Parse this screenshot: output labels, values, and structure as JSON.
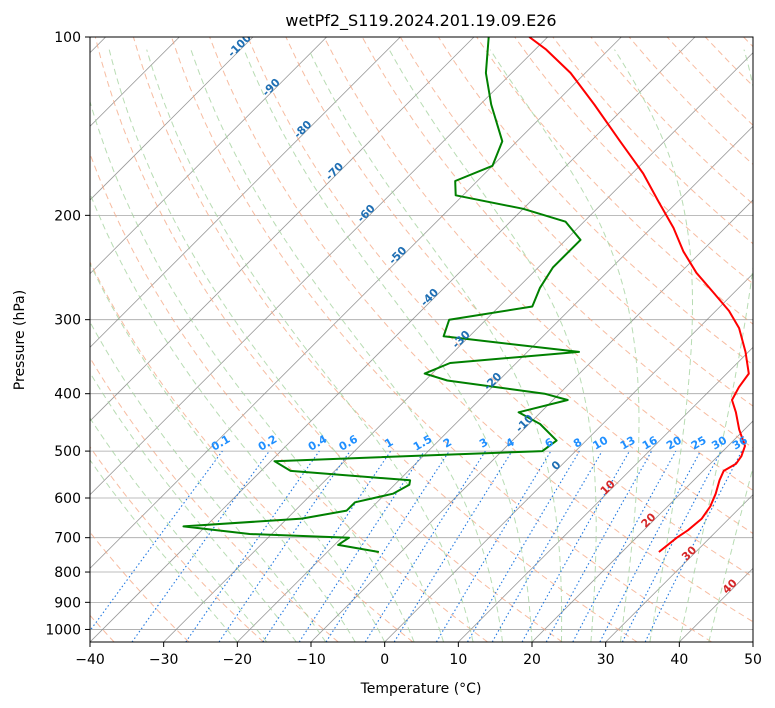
{
  "chart_data": {
    "type": "line",
    "title": "wetPf2_S119.2024.201.19.09.E26",
    "xlabel": "Temperature (°C)",
    "ylabel": "Pressure (hPa)",
    "xlim": [
      -40,
      50
    ],
    "ylim": [
      1050,
      100
    ],
    "y_scale": "log",
    "skew": 45,
    "grid": true,
    "x_ticks": [
      -40,
      -30,
      -20,
      -10,
      0,
      10,
      20,
      30,
      40,
      50
    ],
    "y_ticks": [
      100,
      200,
      300,
      400,
      500,
      600,
      700,
      800,
      900,
      1000
    ],
    "isotherm_labels": [
      -100,
      -90,
      -80,
      -70,
      -60,
      -50,
      -40,
      -30,
      -20,
      -10,
      0,
      10,
      20,
      30,
      40
    ],
    "mixing_ratio_labels": [
      "0.1",
      "0.2",
      "0.4",
      "0.6",
      "1",
      "1.5",
      "2",
      "3",
      "4",
      "6",
      "8",
      "10",
      "13",
      "16",
      "20",
      "25",
      "30",
      "36"
    ],
    "mixing_ratio_values": [
      0.1,
      0.2,
      0.4,
      0.6,
      1,
      1.5,
      2,
      3,
      4,
      6,
      8,
      10,
      13,
      16,
      20,
      25,
      30,
      36
    ],
    "colors": {
      "temperature": "#ff0000",
      "dewpoint": "#008000",
      "isotherm": "#808080",
      "dry_adiabat": "#f4a582",
      "moist_adiabat": "#a6d3a0",
      "mixing_ratio": "#1f77e0",
      "isotherm_label_cold": "#1f6fb4",
      "isotherm_label_warm": "#d62728",
      "mixing_label": "#1f8fff"
    },
    "series": [
      {
        "label": "temperature",
        "p": [
          740,
          700,
          680,
          650,
          620,
          590,
          560,
          540,
          525,
          510,
          490,
          460,
          430,
          410,
          390,
          370,
          340,
          310,
          290,
          270,
          250,
          230,
          210,
          190,
          170,
          150,
          130,
          115,
          105,
          100
        ],
        "t": [
          25,
          25.5,
          26,
          26.3,
          25.8,
          24.8,
          23.5,
          22.8,
          23.5,
          23.2,
          22.3,
          19.3,
          16.5,
          14.3,
          13.5,
          13,
          9.6,
          5.5,
          1.8,
          -2.8,
          -7.8,
          -12.5,
          -17,
          -22.5,
          -28.5,
          -36,
          -44.5,
          -52,
          -58.5,
          -62.5
        ]
      },
      {
        "label": "dewpoint",
        "p": [
          740,
          720,
          700,
          690,
          670,
          650,
          630,
          610,
          590,
          570,
          560,
          540,
          520,
          500,
          480,
          450,
          430,
          410,
          400,
          380,
          370,
          355,
          340,
          320,
          300,
          285,
          265,
          245,
          220,
          205,
          195,
          185,
          175,
          165,
          150,
          130,
          115,
          100
        ],
        "t": [
          -13,
          -19.5,
          -19,
          -33,
          -43,
          -28,
          -23,
          -23,
          -19,
          -18,
          -18.5,
          -36,
          -39.5,
          -4.5,
          -4,
          -8.5,
          -13,
          -8,
          -12,
          -27,
          -31,
          -29,
          -13,
          -33.5,
          -35,
          -25.5,
          -27,
          -28,
          -28,
          -32.5,
          -40,
          -51,
          -53,
          -50,
          -52,
          -58.5,
          -63.5,
          -68
        ]
      }
    ]
  }
}
